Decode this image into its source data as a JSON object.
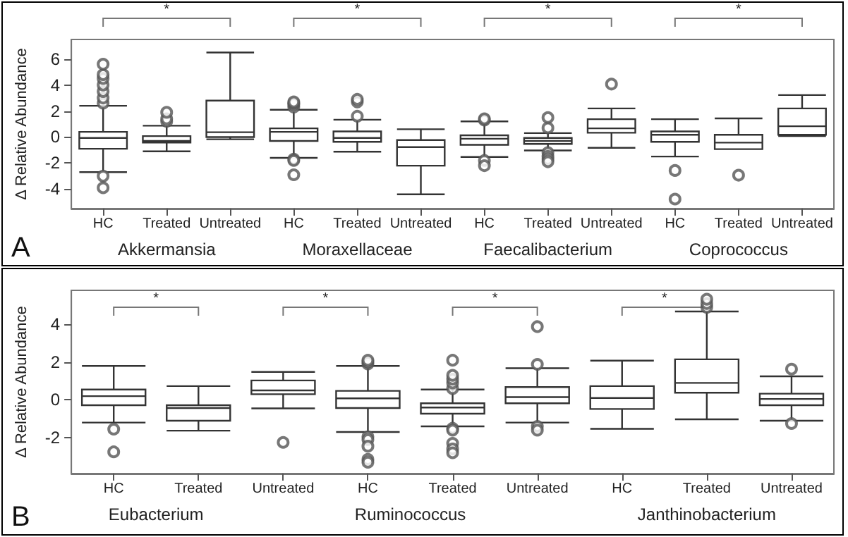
{
  "chart_data": [
    {
      "type": "box",
      "ylabel": "Δ Relative Abundance",
      "categories": [
        "HC",
        "Treated",
        "Untreated",
        "HC",
        "Treated",
        "Untreated",
        "HC",
        "Treated",
        "Untreated",
        "HC",
        "Treated",
        "Untreated"
      ],
      "ylim": [
        -5.5,
        7.5
      ],
      "yticks": [
        -4,
        -2,
        0,
        2,
        4,
        6
      ],
      "boxes": [
        {
          "low": -2.7,
          "q1": -0.9,
          "median": -0.07,
          "q3": 0.4,
          "high": 2.4,
          "outliers": [
            2.6,
            3.0,
            3.5,
            4.0,
            4.5,
            4.8,
            5.6,
            -3.0,
            -3.9
          ]
        },
        {
          "low": -1.1,
          "q1": -0.43,
          "median": -0.3,
          "q3": 0.07,
          "high": 0.87,
          "outliers": [
            1.2,
            1.4,
            1.9
          ]
        },
        {
          "low": -0.17,
          "q1": 0.0,
          "median": 0.37,
          "q3": 2.8,
          "high": 6.5
        },
        {
          "low": -1.6,
          "q1": -0.3,
          "median": 0.4,
          "q3": 0.67,
          "high": 2.1,
          "outliers": [
            2.3,
            2.5,
            2.6,
            2.7,
            -1.7,
            -1.8,
            -2.9
          ]
        },
        {
          "low": -1.13,
          "q1": -0.37,
          "median": -0.07,
          "q3": 0.43,
          "high": 1.33,
          "outliers": [
            1.6,
            2.7,
            2.9
          ]
        },
        {
          "low": -4.4,
          "q1": -2.2,
          "median": -0.77,
          "q3": -0.23,
          "high": 0.6
        },
        {
          "low": -1.53,
          "q1": -0.6,
          "median": -0.13,
          "q3": 0.13,
          "high": 1.2,
          "outliers": [
            1.3,
            1.4,
            -1.8,
            -2.2
          ]
        },
        {
          "low": -1.03,
          "q1": -0.53,
          "median": -0.3,
          "q3": -0.07,
          "high": 0.3,
          "outliers": [
            0.7,
            1.5,
            -1.2,
            -1.5,
            -1.7,
            -1.9
          ]
        },
        {
          "low": -0.83,
          "q1": 0.33,
          "median": 0.67,
          "q3": 1.37,
          "high": 2.2,
          "outliers": [
            4.07
          ]
        },
        {
          "low": -1.5,
          "q1": -0.37,
          "median": 0.17,
          "q3": 0.43,
          "high": 1.37,
          "outliers": [
            -2.57,
            -4.77
          ]
        },
        {
          "low": -0.93,
          "q1": -0.93,
          "median": -0.43,
          "q3": 0.17,
          "high": 1.43,
          "outliers": [
            -2.93
          ]
        },
        {
          "low": 0.07,
          "q1": 0.17,
          "median": 0.83,
          "q3": 2.2,
          "high": 3.23
        }
      ],
      "annotations": [
        "Akkermansia",
        "Moraxellaceae",
        "Faecalibacterium",
        "Coprococcus",
        "*",
        "*",
        "*",
        "*",
        "A"
      ]
    },
    {
      "type": "box",
      "ylabel": "Δ Relative Abundance",
      "categories": [
        "HC",
        "Treated",
        "Untreated",
        "HC",
        "Treated",
        "Untreated",
        "HC",
        "Treated",
        "Untreated"
      ],
      "ylim": [
        -3.9,
        5.8
      ],
      "yticks": [
        -2,
        0,
        2,
        4
      ],
      "boxes": [
        {
          "low": -1.2,
          "q1": -0.28,
          "median": 0.2,
          "q3": 0.55,
          "high": 1.8,
          "outliers": [
            -1.55,
            -2.75
          ]
        },
        {
          "low": -1.63,
          "q1": -1.1,
          "median": -0.43,
          "q3": -0.28,
          "high": 0.73
        },
        {
          "low": -0.45,
          "q1": 0.3,
          "median": 0.5,
          "q3": 1.03,
          "high": 1.48,
          "outliers": [
            -2.25
          ]
        },
        {
          "low": -1.7,
          "q1": -0.43,
          "median": 0.08,
          "q3": 0.48,
          "high": 1.8,
          "outliers": [
            1.9,
            2.0,
            2.1,
            -1.95,
            -2.1,
            -2.45,
            -3.15,
            -3.3
          ]
        },
        {
          "low": -1.4,
          "q1": -0.73,
          "median": -0.4,
          "q3": -0.18,
          "high": 0.55,
          "outliers": [
            0.6,
            0.9,
            1.1,
            1.3,
            2.1,
            -1.5,
            -1.6,
            -2.3,
            -2.6,
            -2.8
          ]
        },
        {
          "low": -1.2,
          "q1": -0.18,
          "median": 0.15,
          "q3": 0.68,
          "high": 1.68,
          "outliers": [
            1.88,
            3.88,
            -1.4,
            -1.6
          ]
        },
        {
          "low": -1.53,
          "q1": -0.48,
          "median": 0.1,
          "q3": 0.73,
          "high": 2.08
        },
        {
          "low": -1.03,
          "q1": 0.38,
          "median": 0.9,
          "q3": 2.15,
          "high": 4.68,
          "outliers": [
            4.9,
            5.1,
            5.33
          ]
        },
        {
          "low": -1.1,
          "q1": -0.28,
          "median": 0.05,
          "q3": 0.33,
          "high": 1.25,
          "outliers": [
            1.63,
            -1.25
          ]
        }
      ],
      "annotations": [
        "Eubacterium",
        "Ruminococcus",
        "Janthinobacterium",
        "*",
        "*",
        "*",
        "*",
        "B"
      ]
    }
  ]
}
